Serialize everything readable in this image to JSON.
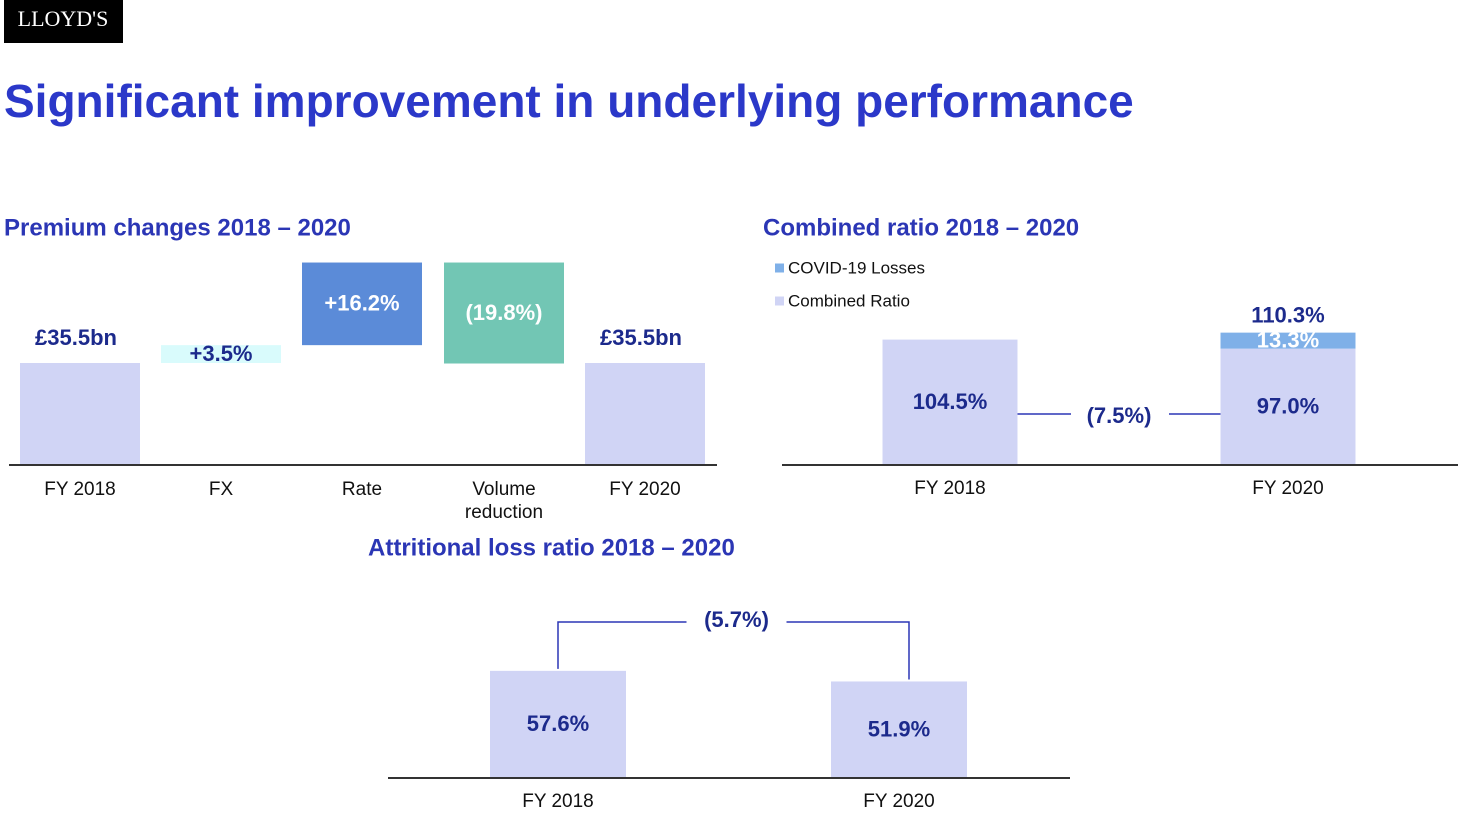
{
  "logo": "LLOYD'S",
  "title": "Significant improvement in underlying performance",
  "chart_data": [
    {
      "type": "waterfall",
      "title": "Premium changes 2018 – 2020",
      "categories": [
        "FY 2018",
        "FX",
        "Rate",
        "Volume reduction",
        "FY 2020"
      ],
      "values": [
        35.5,
        3.5,
        16.2,
        -19.8,
        35.5
      ],
      "value_labels": [
        "£35.5bn",
        "+3.5%",
        "+16.2%",
        "(19.8%)",
        "£35.5bn"
      ],
      "totals": [
        true,
        false,
        false,
        false,
        true
      ],
      "colors": [
        "#d0d4f5",
        "#d9fbfc",
        "#5b8bd8",
        "#72c6b4",
        "#d0d4f5"
      ]
    },
    {
      "type": "stacked_bar",
      "title": "Combined ratio 2018 – 2020",
      "categories": [
        "FY 2018",
        "FY 2020"
      ],
      "series": [
        {
          "name": "Combined Ratio",
          "color": "#d0d4f5",
          "values": [
            104.5,
            97.0
          ],
          "value_labels": [
            "104.5%",
            "97.0%"
          ]
        },
        {
          "name": "COVID-19 Losses",
          "color": "#7fb0e8",
          "values": [
            null,
            13.3
          ],
          "value_labels": [
            null,
            "13.3%"
          ]
        }
      ],
      "totals": [
        null,
        110.3
      ],
      "total_labels": [
        null,
        "110.3%"
      ],
      "change": {
        "value": -7.5,
        "label": "(7.5%)"
      }
    },
    {
      "type": "bar",
      "title": "Attritional loss ratio 2018 – 2020",
      "categories": [
        "FY 2018",
        "FY 2020"
      ],
      "values": [
        57.6,
        51.9
      ],
      "value_labels": [
        "57.6%",
        "51.9%"
      ],
      "color": "#d0d4f5",
      "change": {
        "value": -5.7,
        "label": "(5.7%)"
      }
    }
  ]
}
